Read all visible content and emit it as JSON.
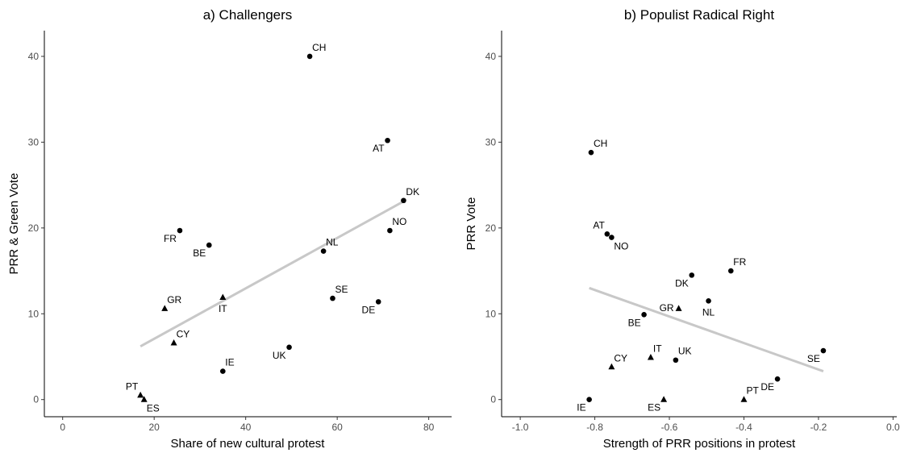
{
  "chart_data": [
    {
      "type": "scatter",
      "title": "a) Challengers",
      "xlabel": "Share of new cultural protest",
      "ylabel": "PRR & Green Vote",
      "xlim": [
        -4,
        85
      ],
      "ylim": [
        -2,
        43
      ],
      "xticks": [
        0,
        20,
        40,
        60,
        80
      ],
      "yticks": [
        0,
        10,
        20,
        30,
        40
      ],
      "grid": false,
      "legend": "none",
      "markers": {
        "circle": "circle",
        "triangle": "triangle"
      },
      "points": [
        {
          "label": "CH",
          "x": 54.0,
          "y": 40.0,
          "marker": "circle",
          "label_pos": "above-right"
        },
        {
          "label": "AT",
          "x": 71.0,
          "y": 30.2,
          "marker": "circle",
          "label_pos": "below-left"
        },
        {
          "label": "DK",
          "x": 74.5,
          "y": 23.2,
          "marker": "circle",
          "label_pos": "above-right"
        },
        {
          "label": "NO",
          "x": 71.5,
          "y": 19.7,
          "marker": "circle",
          "label_pos": "above-right"
        },
        {
          "label": "FR",
          "x": 25.6,
          "y": 19.7,
          "marker": "circle",
          "label_pos": "below-left"
        },
        {
          "label": "BE",
          "x": 32.0,
          "y": 18.0,
          "marker": "circle",
          "label_pos": "below-left"
        },
        {
          "label": "NL",
          "x": 57.0,
          "y": 17.3,
          "marker": "circle",
          "label_pos": "above-right"
        },
        {
          "label": "SE",
          "x": 59.0,
          "y": 11.8,
          "marker": "circle",
          "label_pos": "above-right"
        },
        {
          "label": "DE",
          "x": 69.0,
          "y": 11.4,
          "marker": "circle",
          "label_pos": "below-left"
        },
        {
          "label": "GR",
          "x": 22.3,
          "y": 10.6,
          "marker": "triangle",
          "label_pos": "above-right"
        },
        {
          "label": "IT",
          "x": 35.0,
          "y": 11.9,
          "marker": "triangle",
          "label_pos": "below"
        },
        {
          "label": "CY",
          "x": 24.3,
          "y": 6.6,
          "marker": "triangle",
          "label_pos": "above-right"
        },
        {
          "label": "UK",
          "x": 49.5,
          "y": 6.1,
          "marker": "circle",
          "label_pos": "below-left"
        },
        {
          "label": "IE",
          "x": 35.0,
          "y": 3.3,
          "marker": "circle",
          "label_pos": "above-right"
        },
        {
          "label": "PT",
          "x": 17.0,
          "y": 0.5,
          "marker": "triangle",
          "label_pos": "above-left"
        },
        {
          "label": "ES",
          "x": 17.8,
          "y": 0.0,
          "marker": "triangle",
          "label_pos": "below-right"
        }
      ],
      "fit_line": {
        "x": [
          17.0,
          74.5
        ],
        "y": [
          6.2,
          23.1
        ]
      }
    },
    {
      "type": "scatter",
      "title": "b) Populist Radical Right",
      "xlabel": "Strength of PRR positions in protest",
      "ylabel": "PRR Vote",
      "xlim": [
        -1.05,
        0.01
      ],
      "ylim": [
        -2,
        43
      ],
      "xticks": [
        -1.0,
        -0.8,
        -0.6,
        -0.4,
        -0.2,
        0.0
      ],
      "xtick_labels": [
        "-1.0",
        "-0.8",
        "-0.6",
        "-0.4",
        "-0.2",
        "0.0"
      ],
      "yticks": [
        0,
        10,
        20,
        30,
        40
      ],
      "grid": false,
      "legend": "none",
      "markers": {
        "circle": "circle",
        "triangle": "triangle"
      },
      "points": [
        {
          "label": "CH",
          "x": -0.81,
          "y": 28.8,
          "marker": "circle",
          "label_pos": "above-right"
        },
        {
          "label": "AT",
          "x": -0.767,
          "y": 19.3,
          "marker": "circle",
          "label_pos": "above-left"
        },
        {
          "label": "NO",
          "x": -0.755,
          "y": 18.9,
          "marker": "circle",
          "label_pos": "below-right"
        },
        {
          "label": "FR",
          "x": -0.435,
          "y": 15.0,
          "marker": "circle",
          "label_pos": "above-right"
        },
        {
          "label": "DK",
          "x": -0.54,
          "y": 14.5,
          "marker": "circle",
          "label_pos": "below-left"
        },
        {
          "label": "NL",
          "x": -0.495,
          "y": 11.5,
          "marker": "circle",
          "label_pos": "below"
        },
        {
          "label": "GR",
          "x": -0.575,
          "y": 10.6,
          "marker": "triangle",
          "label_pos": "left"
        },
        {
          "label": "BE",
          "x": -0.668,
          "y": 9.9,
          "marker": "circle",
          "label_pos": "below-left"
        },
        {
          "label": "SE",
          "x": -0.187,
          "y": 5.7,
          "marker": "circle",
          "label_pos": "below-left"
        },
        {
          "label": "IT",
          "x": -0.65,
          "y": 4.9,
          "marker": "triangle",
          "label_pos": "above-right"
        },
        {
          "label": "UK",
          "x": -0.583,
          "y": 4.6,
          "marker": "circle",
          "label_pos": "above-right"
        },
        {
          "label": "CY",
          "x": -0.755,
          "y": 3.8,
          "marker": "triangle",
          "label_pos": "above-right"
        },
        {
          "label": "DE",
          "x": -0.31,
          "y": 2.4,
          "marker": "circle",
          "label_pos": "below-left"
        },
        {
          "label": "PT",
          "x": -0.4,
          "y": 0.0,
          "marker": "triangle",
          "label_pos": "above-right"
        },
        {
          "label": "IE",
          "x": -0.815,
          "y": 0.0,
          "marker": "circle",
          "label_pos": "below-left"
        },
        {
          "label": "ES",
          "x": -0.615,
          "y": 0.0,
          "marker": "triangle",
          "label_pos": "below-left"
        }
      ],
      "fit_line": {
        "x": [
          -0.815,
          -0.187
        ],
        "y": [
          13.0,
          3.3
        ]
      }
    }
  ]
}
